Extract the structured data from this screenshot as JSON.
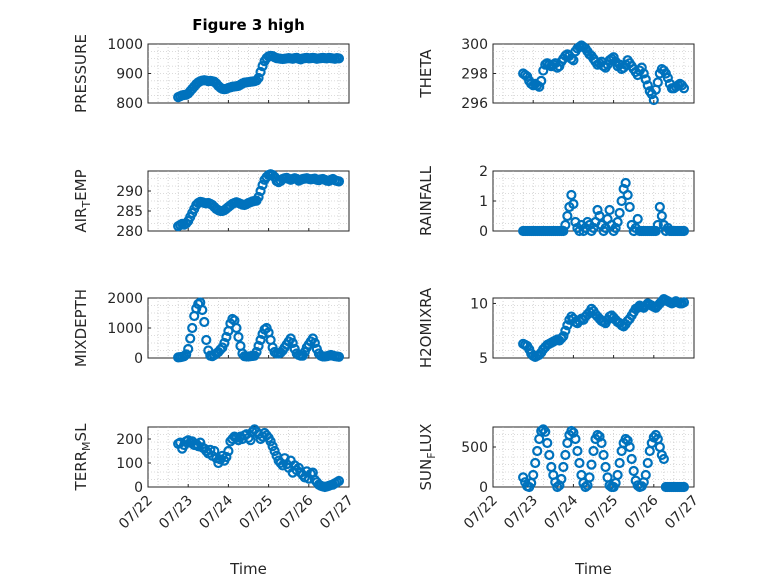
{
  "figure": {
    "title": "Figure 3 high",
    "marker_color": "#0072BD",
    "x_tick_labels": [
      "07/22",
      "07/23",
      "07/24",
      "07/25",
      "07/26",
      "07/27"
    ],
    "x_label": "Time"
  },
  "chart_data": [
    {
      "type": "scatter",
      "ylabel": "PRESSURE",
      "xlim": [
        "2010-07-22",
        "2010-07-27"
      ],
      "ylim": [
        800,
        1000
      ],
      "yticks": [
        800,
        900,
        1000
      ],
      "x_days": [
        0.75,
        0.8,
        0.85,
        0.9,
        0.95,
        1.0,
        1.05,
        1.1,
        1.15,
        1.2,
        1.25,
        1.3,
        1.35,
        1.4,
        1.45,
        1.5,
        1.55,
        1.6,
        1.65,
        1.7,
        1.75,
        1.8,
        1.85,
        1.9,
        1.95,
        2.0,
        2.05,
        2.1,
        2.15,
        2.2,
        2.25,
        2.3,
        2.35,
        2.4,
        2.45,
        2.5,
        2.55,
        2.6,
        2.65,
        2.7,
        2.75,
        2.8,
        2.85,
        2.9,
        2.95,
        3.0,
        3.05,
        3.1,
        3.15,
        3.2,
        3.25,
        3.3,
        3.35,
        3.4,
        3.45,
        3.5,
        3.55,
        3.6,
        3.65,
        3.7,
        3.75,
        3.8,
        3.85,
        3.9,
        3.95,
        4.0,
        4.05,
        4.1,
        4.15,
        4.2,
        4.25,
        4.3,
        4.35,
        4.4,
        4.45,
        4.5,
        4.55,
        4.6,
        4.65,
        4.7,
        4.75
      ],
      "values": [
        820,
        823,
        826,
        827,
        828,
        832,
        840,
        848,
        856,
        864,
        870,
        874,
        876,
        877,
        876,
        874,
        875,
        874,
        872,
        866,
        858,
        852,
        848,
        847,
        848,
        851,
        853,
        855,
        856,
        857,
        858,
        862,
        866,
        869,
        870,
        871,
        872,
        873,
        874,
        876,
        885,
        905,
        925,
        942,
        952,
        958,
        960,
        959,
        955,
        952,
        951,
        950,
        949,
        950,
        951,
        952,
        951,
        950,
        952,
        953,
        950,
        948,
        951,
        952,
        953,
        951,
        952,
        953,
        952,
        950,
        951,
        952,
        953,
        952,
        951,
        953,
        952,
        951,
        950,
        952,
        951
      ]
    },
    {
      "type": "scatter",
      "ylabel": "THETA",
      "xlim": [
        "2010-07-22",
        "2010-07-27"
      ],
      "ylim": [
        296,
        300
      ],
      "yticks": [
        296,
        298,
        300
      ],
      "x_days": [
        0.75,
        0.8,
        0.85,
        0.9,
        0.95,
        1.0,
        1.05,
        1.1,
        1.15,
        1.2,
        1.25,
        1.3,
        1.35,
        1.4,
        1.45,
        1.5,
        1.55,
        1.6,
        1.65,
        1.7,
        1.75,
        1.8,
        1.85,
        1.9,
        1.95,
        2.0,
        2.05,
        2.1,
        2.15,
        2.2,
        2.25,
        2.3,
        2.35,
        2.4,
        2.45,
        2.5,
        2.55,
        2.6,
        2.65,
        2.7,
        2.75,
        2.8,
        2.85,
        2.9,
        2.95,
        3.0,
        3.05,
        3.1,
        3.15,
        3.2,
        3.25,
        3.3,
        3.35,
        3.4,
        3.45,
        3.5,
        3.55,
        3.6,
        3.65,
        3.7,
        3.75,
        3.8,
        3.85,
        3.9,
        3.95,
        4.0,
        4.05,
        4.1,
        4.15,
        4.2,
        4.25,
        4.3,
        4.35,
        4.4,
        4.45,
        4.5,
        4.55,
        4.6,
        4.65,
        4.7,
        4.75
      ],
      "values": [
        298.0,
        297.9,
        297.8,
        297.5,
        297.3,
        297.2,
        297.3,
        297.2,
        297.1,
        297.5,
        298.2,
        298.6,
        298.7,
        298.6,
        298.5,
        298.6,
        298.7,
        298.4,
        298.5,
        298.8,
        299.0,
        299.2,
        299.3,
        299.2,
        299.0,
        298.9,
        299.5,
        299.7,
        299.8,
        299.9,
        299.8,
        299.7,
        299.5,
        299.3,
        299.2,
        299.0,
        298.8,
        298.6,
        298.7,
        298.8,
        298.5,
        298.4,
        298.6,
        298.9,
        299.0,
        299.1,
        298.8,
        298.5,
        298.6,
        298.3,
        298.4,
        298.6,
        298.9,
        298.7,
        298.5,
        298.3,
        298.1,
        297.9,
        298.2,
        298.4,
        298.0,
        297.6,
        297.2,
        296.8,
        296.6,
        296.2,
        296.9,
        297.4,
        298.0,
        298.3,
        298.2,
        298.0,
        297.7,
        297.3,
        297.0,
        297.0,
        297.1,
        297.2,
        297.3,
        297.2,
        297.0
      ]
    },
    {
      "type": "scatter",
      "ylabel": "AIR_TEMP",
      "xlim": [
        "2010-07-22",
        "2010-07-27"
      ],
      "ylim": [
        280,
        295
      ],
      "yticks": [
        280,
        285,
        290
      ],
      "x_days": [
        0.75,
        0.8,
        0.85,
        0.9,
        0.95,
        1.0,
        1.05,
        1.1,
        1.15,
        1.2,
        1.25,
        1.3,
        1.35,
        1.4,
        1.45,
        1.5,
        1.55,
        1.6,
        1.65,
        1.7,
        1.75,
        1.8,
        1.85,
        1.9,
        1.95,
        2.0,
        2.05,
        2.1,
        2.15,
        2.2,
        2.25,
        2.3,
        2.35,
        2.4,
        2.45,
        2.5,
        2.55,
        2.6,
        2.65,
        2.7,
        2.75,
        2.8,
        2.85,
        2.9,
        2.95,
        3.0,
        3.05,
        3.1,
        3.15,
        3.2,
        3.25,
        3.3,
        3.35,
        3.4,
        3.45,
        3.5,
        3.55,
        3.6,
        3.65,
        3.7,
        3.75,
        3.8,
        3.85,
        3.9,
        3.95,
        4.0,
        4.05,
        4.1,
        4.15,
        4.2,
        4.25,
        4.3,
        4.35,
        4.4,
        4.45,
        4.5,
        4.55,
        4.6,
        4.65,
        4.7,
        4.75
      ],
      "values": [
        281.2,
        281.5,
        281.8,
        281.6,
        281.9,
        282.5,
        283.5,
        284.5,
        285.5,
        286.5,
        287.0,
        287.3,
        287.2,
        287.0,
        286.9,
        287.0,
        286.8,
        286.5,
        286.0,
        285.5,
        285.2,
        285.0,
        285.0,
        285.2,
        285.6,
        286.0,
        286.4,
        286.8,
        287.0,
        287.2,
        287.0,
        286.8,
        286.6,
        286.5,
        286.7,
        287.0,
        287.2,
        287.4,
        287.5,
        287.6,
        288.5,
        290.0,
        291.5,
        292.8,
        293.5,
        294.0,
        294.2,
        294.0,
        293.5,
        292.5,
        292.2,
        292.5,
        293.0,
        293.2,
        293.3,
        293.0,
        292.8,
        293.0,
        293.2,
        293.0,
        292.6,
        292.8,
        293.0,
        293.1,
        293.2,
        293.0,
        292.9,
        293.0,
        293.1,
        292.8,
        292.7,
        292.9,
        293.0,
        292.8,
        292.6,
        292.5,
        292.8,
        293.0,
        292.7,
        292.5,
        292.4
      ]
    },
    {
      "type": "scatter",
      "ylabel": "RAINFALL",
      "xlim": [
        "2010-07-22",
        "2010-07-27"
      ],
      "ylim": [
        0,
        2
      ],
      "yticks": [
        0,
        1,
        2
      ],
      "x_days": [
        0.75,
        0.8,
        0.85,
        0.9,
        0.95,
        1.0,
        1.05,
        1.1,
        1.15,
        1.2,
        1.25,
        1.3,
        1.35,
        1.4,
        1.45,
        1.5,
        1.55,
        1.6,
        1.65,
        1.7,
        1.75,
        1.8,
        1.85,
        1.9,
        1.95,
        2.0,
        2.05,
        2.1,
        2.15,
        2.2,
        2.25,
        2.3,
        2.35,
        2.4,
        2.45,
        2.5,
        2.55,
        2.6,
        2.65,
        2.7,
        2.75,
        2.8,
        2.85,
        2.9,
        2.95,
        3.0,
        3.05,
        3.1,
        3.15,
        3.2,
        3.25,
        3.3,
        3.35,
        3.4,
        3.45,
        3.5,
        3.55,
        3.6,
        3.65,
        3.7,
        3.75,
        3.8,
        3.85,
        3.9,
        3.95,
        4.0,
        4.05,
        4.1,
        4.15,
        4.2,
        4.25,
        4.3,
        4.35,
        4.4,
        4.45,
        4.5,
        4.55,
        4.6,
        4.65,
        4.7,
        4.75
      ],
      "values": [
        0,
        0,
        0,
        0,
        0,
        0,
        0,
        0,
        0,
        0,
        0,
        0,
        0,
        0,
        0,
        0,
        0,
        0,
        0,
        0,
        0,
        0.2,
        0.5,
        0.8,
        1.2,
        0.9,
        0.3,
        0.1,
        0,
        0.2,
        0,
        0.1,
        0.3,
        0.2,
        0,
        0.1,
        0.3,
        0.7,
        0.5,
        0.2,
        0,
        0.1,
        0.4,
        0.7,
        0.2,
        0,
        0.1,
        0.3,
        0.6,
        1.0,
        1.4,
        1.6,
        1.2,
        0.8,
        0.2,
        0,
        0.1,
        0.4,
        0,
        0,
        0,
        0,
        0,
        0,
        0,
        0,
        0,
        0.2,
        0.8,
        0.5,
        0.2,
        0,
        0.1,
        0,
        0,
        0,
        0,
        0,
        0,
        0,
        0
      ]
    },
    {
      "type": "scatter",
      "ylabel": "MIXDEPTH",
      "xlim": [
        "2010-07-22",
        "2010-07-27"
      ],
      "ylim": [
        0,
        2000
      ],
      "yticks": [
        0,
        1000,
        2000
      ],
      "x_days": [
        0.75,
        0.8,
        0.85,
        0.9,
        0.95,
        1.0,
        1.05,
        1.1,
        1.15,
        1.2,
        1.25,
        1.3,
        1.35,
        1.4,
        1.45,
        1.5,
        1.55,
        1.6,
        1.65,
        1.7,
        1.75,
        1.8,
        1.85,
        1.9,
        1.95,
        2.0,
        2.05,
        2.1,
        2.15,
        2.2,
        2.25,
        2.3,
        2.35,
        2.4,
        2.45,
        2.5,
        2.55,
        2.6,
        2.65,
        2.7,
        2.75,
        2.8,
        2.85,
        2.9,
        2.95,
        3.0,
        3.05,
        3.1,
        3.15,
        3.2,
        3.25,
        3.3,
        3.35,
        3.4,
        3.45,
        3.5,
        3.55,
        3.6,
        3.65,
        3.7,
        3.75,
        3.8,
        3.85,
        3.9,
        3.95,
        4.0,
        4.05,
        4.1,
        4.15,
        4.2,
        4.25,
        4.3,
        4.35,
        4.4,
        4.45,
        4.5,
        4.55,
        4.6,
        4.65,
        4.7,
        4.75
      ],
      "values": [
        20,
        30,
        40,
        60,
        120,
        300,
        650,
        1000,
        1400,
        1650,
        1800,
        1850,
        1600,
        1200,
        600,
        250,
        80,
        60,
        100,
        150,
        200,
        280,
        350,
        500,
        700,
        900,
        1150,
        1300,
        1250,
        1000,
        700,
        400,
        150,
        60,
        50,
        50,
        60,
        70,
        80,
        200,
        400,
        600,
        800,
        950,
        1000,
        850,
        600,
        350,
        200,
        150,
        150,
        180,
        250,
        350,
        450,
        550,
        650,
        500,
        300,
        150,
        100,
        80,
        80,
        200,
        350,
        450,
        550,
        650,
        500,
        300,
        150,
        80,
        50,
        50,
        60,
        80,
        100,
        80,
        60,
        50,
        40
      ]
    },
    {
      "type": "scatter",
      "ylabel": "H2OMIXRA",
      "xlim": [
        "2010-07-22",
        "2010-07-27"
      ],
      "ylim": [
        5,
        10.5
      ],
      "yticks": [
        5,
        10
      ],
      "x_days": [
        0.75,
        0.8,
        0.85,
        0.9,
        0.95,
        1.0,
        1.05,
        1.1,
        1.15,
        1.2,
        1.25,
        1.3,
        1.35,
        1.4,
        1.45,
        1.5,
        1.55,
        1.6,
        1.65,
        1.7,
        1.75,
        1.8,
        1.85,
        1.9,
        1.95,
        2.0,
        2.05,
        2.1,
        2.15,
        2.2,
        2.25,
        2.3,
        2.35,
        2.4,
        2.45,
        2.5,
        2.55,
        2.6,
        2.65,
        2.7,
        2.75,
        2.8,
        2.85,
        2.9,
        2.95,
        3.0,
        3.05,
        3.1,
        3.15,
        3.2,
        3.25,
        3.3,
        3.35,
        3.4,
        3.45,
        3.5,
        3.55,
        3.6,
        3.65,
        3.7,
        3.75,
        3.8,
        3.85,
        3.9,
        3.95,
        4.0,
        4.05,
        4.1,
        4.15,
        4.2,
        4.25,
        4.3,
        4.35,
        4.4,
        4.45,
        4.5,
        4.55,
        4.6,
        4.65,
        4.7,
        4.75
      ],
      "values": [
        6.3,
        6.2,
        6.1,
        5.8,
        5.4,
        5.2,
        5.1,
        5.2,
        5.3,
        5.5,
        5.8,
        6.0,
        6.2,
        6.3,
        6.4,
        6.5,
        6.6,
        6.7,
        6.6,
        6.8,
        7.0,
        7.5,
        8.0,
        8.5,
        8.8,
        8.6,
        8.3,
        8.2,
        8.4,
        8.6,
        8.5,
        8.8,
        9.0,
        9.2,
        9.5,
        9.3,
        9.0,
        8.8,
        8.6,
        8.4,
        8.3,
        8.2,
        8.5,
        8.8,
        8.9,
        8.7,
        8.5,
        8.3,
        8.2,
        8.0,
        7.9,
        8.1,
        8.4,
        8.6,
        8.9,
        9.2,
        9.5,
        9.6,
        9.8,
        9.7,
        9.6,
        9.8,
        10.0,
        9.9,
        9.8,
        9.7,
        9.6,
        9.8,
        10.0,
        10.2,
        10.4,
        10.3,
        10.2,
        10.1,
        10.0,
        10.1,
        10.2,
        10.1,
        10.0,
        10.0,
        10.1
      ]
    },
    {
      "type": "scatter",
      "ylabel": "TERR_MSL",
      "xlim": [
        "2010-07-22",
        "2010-07-27"
      ],
      "ylim": [
        0,
        250
      ],
      "yticks": [
        0,
        100,
        200
      ],
      "x_days": [
        0.75,
        0.8,
        0.85,
        0.9,
        0.95,
        1.0,
        1.05,
        1.1,
        1.15,
        1.2,
        1.25,
        1.3,
        1.35,
        1.4,
        1.45,
        1.5,
        1.55,
        1.6,
        1.65,
        1.7,
        1.75,
        1.8,
        1.85,
        1.9,
        1.95,
        2.0,
        2.05,
        2.1,
        2.15,
        2.2,
        2.25,
        2.3,
        2.35,
        2.4,
        2.45,
        2.5,
        2.55,
        2.6,
        2.65,
        2.7,
        2.75,
        2.8,
        2.85,
        2.9,
        2.95,
        3.0,
        3.05,
        3.1,
        3.15,
        3.2,
        3.25,
        3.3,
        3.35,
        3.4,
        3.45,
        3.5,
        3.55,
        3.6,
        3.65,
        3.7,
        3.75,
        3.8,
        3.85,
        3.9,
        3.95,
        4.0,
        4.05,
        4.1,
        4.15,
        4.2,
        4.25,
        4.3,
        4.35,
        4.4,
        4.45,
        4.5,
        4.55,
        4.6,
        4.65,
        4.7,
        4.75
      ],
      "values": [
        180,
        185,
        160,
        175,
        190,
        195,
        185,
        190,
        175,
        180,
        170,
        185,
        165,
        160,
        150,
        140,
        155,
        130,
        150,
        120,
        100,
        115,
        130,
        110,
        125,
        150,
        190,
        200,
        210,
        205,
        195,
        210,
        200,
        215,
        220,
        205,
        195,
        230,
        240,
        230,
        220,
        200,
        210,
        225,
        215,
        205,
        190,
        170,
        150,
        130,
        110,
        100,
        90,
        120,
        95,
        80,
        110,
        60,
        90,
        70,
        80,
        60,
        50,
        40,
        65,
        35,
        55,
        60,
        30,
        20,
        10,
        5,
        2,
        0,
        2,
        5,
        8,
        10,
        15,
        20,
        25
      ]
    },
    {
      "type": "scatter",
      "ylabel": "SUN_FLUX",
      "xlim": [
        "2010-07-22",
        "2010-07-27"
      ],
      "ylim": [
        0,
        750
      ],
      "yticks": [
        0,
        500
      ],
      "x_days": [
        0.75,
        0.8,
        0.85,
        0.9,
        0.95,
        1.0,
        1.05,
        1.1,
        1.15,
        1.2,
        1.25,
        1.3,
        1.35,
        1.4,
        1.45,
        1.5,
        1.55,
        1.6,
        1.65,
        1.7,
        1.75,
        1.8,
        1.85,
        1.9,
        1.95,
        2.0,
        2.05,
        2.1,
        2.15,
        2.2,
        2.25,
        2.3,
        2.35,
        2.4,
        2.45,
        2.5,
        2.55,
        2.6,
        2.65,
        2.7,
        2.75,
        2.8,
        2.85,
        2.9,
        2.95,
        3.0,
        3.05,
        3.1,
        3.15,
        3.2,
        3.25,
        3.3,
        3.35,
        3.4,
        3.45,
        3.5,
        3.55,
        3.6,
        3.65,
        3.7,
        3.75,
        3.8,
        3.85,
        3.9,
        3.95,
        4.0,
        4.05,
        4.1,
        4.15,
        4.2,
        4.25,
        4.3,
        4.35,
        4.4,
        4.45,
        4.5,
        4.55,
        4.6,
        4.65,
        4.7,
        4.75
      ],
      "values": [
        120,
        60,
        10,
        0,
        50,
        150,
        300,
        450,
        600,
        700,
        720,
        690,
        550,
        400,
        250,
        150,
        60,
        0,
        20,
        100,
        250,
        400,
        550,
        650,
        700,
        680,
        600,
        450,
        300,
        150,
        50,
        0,
        20,
        120,
        280,
        450,
        600,
        650,
        630,
        550,
        400,
        250,
        120,
        20,
        0,
        0,
        50,
        150,
        300,
        450,
        550,
        600,
        580,
        500,
        350,
        200,
        80,
        20,
        0,
        10,
        60,
        150,
        300,
        450,
        550,
        620,
        650,
        600,
        500,
        400,
        350,
        0,
        0,
        0,
        0,
        0,
        0,
        0,
        0,
        0,
        0
      ]
    }
  ]
}
